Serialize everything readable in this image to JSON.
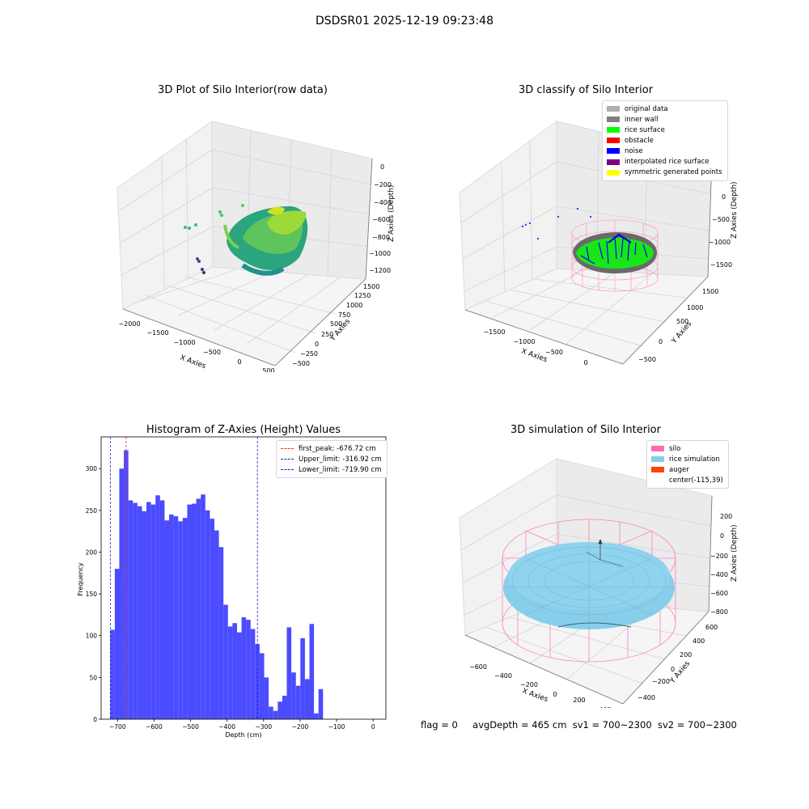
{
  "suptitle": "DSDSR01 2025-12-19 09:23:48",
  "colors": {
    "hist_bar": "#4b4bff",
    "first_peak_line": "#e8312f",
    "limit_line": "#1a1acc",
    "pane": "#f0f0f0",
    "grid": "#d0d0d0"
  },
  "chart_data": [
    {
      "type": "scatter",
      "title": "3D Plot of Silo Interior(row data)",
      "xlabel": "X Axies",
      "ylabel": "Y Axies",
      "zlabel": "Z Axies (Depth)",
      "x_ticks": [
        "−2000",
        "−1500",
        "−1000",
        "−500",
        "0",
        "500"
      ],
      "y_ticks": [
        "−500",
        "−250",
        "0",
        "250",
        "500",
        "750",
        "1000",
        "1250",
        "1500"
      ],
      "z_ticks": [
        "0",
        "−200",
        "−400",
        "−600",
        "−800",
        "−1000",
        "−1200"
      ],
      "colormap": "viridis",
      "grid": true
    },
    {
      "type": "scatter",
      "title": "3D classify of Silo Interior",
      "xlabel": "X Axies",
      "ylabel": "Y Axies",
      "zlabel": "Z Axies (Depth)",
      "x_ticks": [
        "−1500",
        "−1000",
        "−500",
        "0"
      ],
      "y_ticks": [
        "−500",
        "0",
        "500",
        "1000",
        "1500"
      ],
      "z_ticks": [
        "0",
        "−500",
        "−1000",
        "−1500"
      ],
      "legend_position": "top-right",
      "legend": [
        {
          "label": "original data",
          "color": "#b0b0b0"
        },
        {
          "label": "inner wall",
          "color": "#808080"
        },
        {
          "label": "rice surface",
          "color": "#00ff00"
        },
        {
          "label": "obstacle",
          "color": "#ff0000"
        },
        {
          "label": "noise",
          "color": "#0000ff"
        },
        {
          "label": "interpolated rice surface",
          "color": "#800080"
        },
        {
          "label": "symmetric generated points",
          "color": "#ffff00"
        }
      ],
      "grid": true
    },
    {
      "type": "bar",
      "title": "Histogram of Z-Axies (Height) Values",
      "xlabel": "Depth (cm)",
      "ylabel": "Frequency",
      "xlim": [
        -745,
        35
      ],
      "ylim": [
        0,
        338
      ],
      "x_ticks": [
        -700,
        -600,
        -500,
        -400,
        -300,
        -200,
        -100,
        0
      ],
      "x_tick_labels": [
        "−700",
        "−600",
        "−500",
        "−400",
        "−300",
        "−200",
        "−100",
        "0"
      ],
      "y_ticks": [
        0,
        50,
        100,
        150,
        200,
        250,
        300
      ],
      "bin_start": -720,
      "bin_width": 12.4,
      "values": [
        107,
        180,
        300,
        322,
        262,
        259,
        255,
        249,
        260,
        257,
        268,
        262,
        238,
        245,
        243,
        237,
        241,
        257,
        258,
        264,
        269,
        250,
        240,
        226,
        206,
        137,
        111,
        115,
        104,
        122,
        119,
        108,
        90,
        79,
        50,
        15,
        10,
        21,
        28,
        110,
        56,
        40,
        97,
        48,
        114,
        7,
        36
      ],
      "vlines": [
        {
          "label": "first_peak: -676.72 cm",
          "x": -676.72,
          "color": "#e8312f"
        },
        {
          "label": "Upper_limit: -316.92 cm",
          "x": -316.92,
          "color": "#1a1acc"
        },
        {
          "label": "Lower_limit: -719.90 cm",
          "x": -719.9,
          "color": "#1a1acc"
        }
      ],
      "legend_position": "top-right",
      "grid": false
    },
    {
      "type": "scatter",
      "title": "3D simulation of Silo Interior",
      "xlabel": "X Axies",
      "ylabel": "Y Axies",
      "zlabel": "Z Axies (Depth)",
      "x_ticks": [
        "−600",
        "−400",
        "−200",
        "0",
        "200",
        "400"
      ],
      "y_ticks": [
        "−400",
        "−200",
        "0",
        "200",
        "400",
        "600"
      ],
      "z_ticks": [
        "200",
        "0",
        "−200",
        "−400",
        "−600",
        "−800"
      ],
      "legend_position": "top-right",
      "legend": [
        {
          "label": "silo",
          "color": "#ff69b4"
        },
        {
          "label": "rice simulation",
          "color": "#87ceeb"
        },
        {
          "label": "auger",
          "color": "#ff4500"
        },
        {
          "label": "center(-115,39)",
          "color": ""
        }
      ],
      "grid": true
    }
  ],
  "status": {
    "flag": "flag = 0",
    "avg_depth": "avgDepth = 465 cm",
    "sv1": "sv1 = 700~2300",
    "sv2": "sv2 = 700~2300"
  }
}
